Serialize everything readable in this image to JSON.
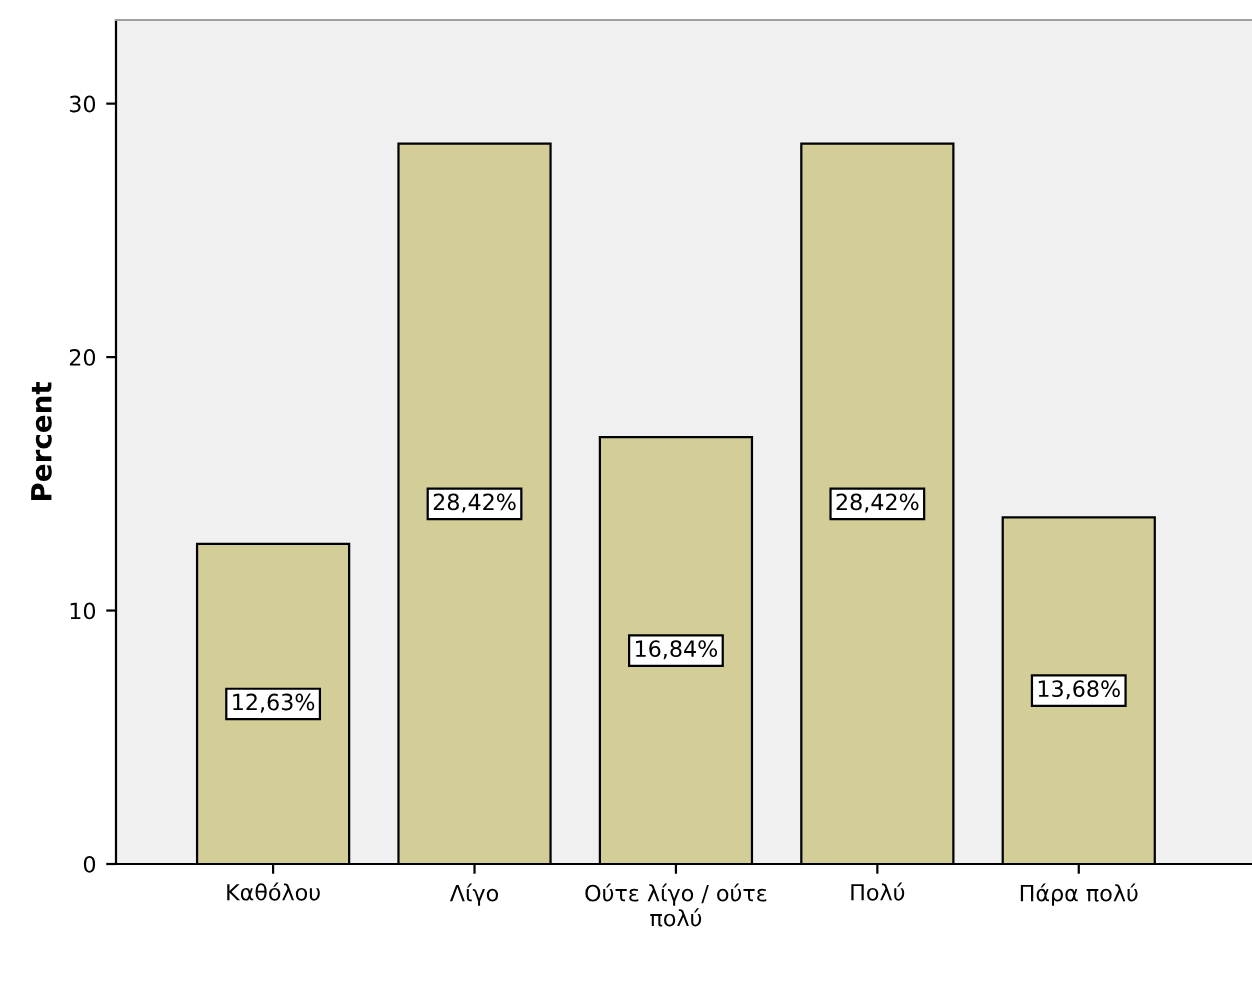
{
  "chart_data": {
    "type": "bar",
    "ylabel": "Percent",
    "categories": [
      "Καθόλου",
      "Λίγο",
      "Ούτε λίγο / ούτε\nπολύ",
      "Πολύ",
      "Πάρα πολύ"
    ],
    "values": [
      12.63,
      28.42,
      16.84,
      28.42,
      13.68
    ],
    "value_labels": [
      "12,63%",
      "28,42%",
      "16,84%",
      "28,42%",
      "13,68%"
    ],
    "color": "#d3ce98",
    "ylim": [
      0,
      33.3
    ],
    "yticks": [
      0,
      10,
      20,
      30
    ],
    "grid": false
  }
}
